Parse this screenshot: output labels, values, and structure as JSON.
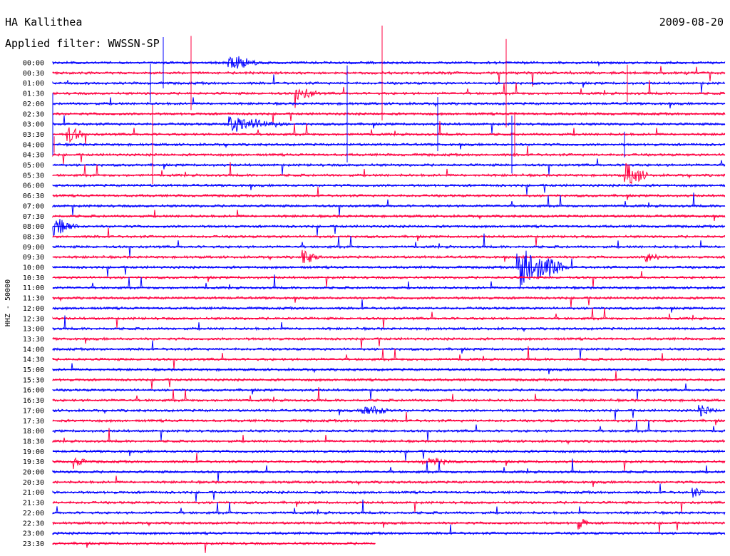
{
  "header": {
    "station": "HA Kallithea",
    "filter": "Applied filter: WWSSN-SP",
    "date": "2009-08-20"
  },
  "chart_data": {
    "type": "line",
    "title": "HA Kallithea",
    "subtitle": "Applied filter: WWSSN-SP",
    "date": "2009-08-20",
    "ylabel": "HHZ - 50000",
    "xlabel": "",
    "rows": [
      "00:00",
      "00:30",
      "01:00",
      "01:30",
      "02:00",
      "02:30",
      "03:00",
      "03:30",
      "04:00",
      "04:30",
      "05:00",
      "05:30",
      "06:00",
      "06:30",
      "07:00",
      "07:30",
      "08:00",
      "08:30",
      "09:00",
      "09:30",
      "10:00",
      "10:30",
      "11:00",
      "11:30",
      "12:00",
      "12:30",
      "13:00",
      "13:30",
      "14:00",
      "14:30",
      "15:00",
      "15:30",
      "16:00",
      "16:30",
      "17:00",
      "17:30",
      "18:00",
      "18:30",
      "19:00",
      "19:30",
      "20:00",
      "20:30",
      "21:00",
      "21:30",
      "22:00",
      "22:30",
      "23:00",
      "23:30"
    ],
    "row_minutes": 30,
    "trace_colors": [
      "#0000ff",
      "#ff0040"
    ],
    "last_row_end_fraction": 0.48,
    "events": [
      {
        "row": 0,
        "pos": 0.26,
        "amp": 1.0,
        "dur": 0.05
      },
      {
        "row": 3,
        "pos": 0.36,
        "amp": 0.8,
        "dur": 0.04
      },
      {
        "row": 6,
        "pos": 0.26,
        "amp": 0.9,
        "dur": 0.09
      },
      {
        "row": 7,
        "pos": 0.02,
        "amp": 1.0,
        "dur": 0.03
      },
      {
        "row": 11,
        "pos": 0.85,
        "amp": 1.4,
        "dur": 0.04
      },
      {
        "row": 16,
        "pos": 0.0,
        "amp": 1.0,
        "dur": 0.04
      },
      {
        "row": 19,
        "pos": 0.37,
        "amp": 0.8,
        "dur": 0.03
      },
      {
        "row": 19,
        "pos": 0.88,
        "amp": 0.6,
        "dur": 0.03
      },
      {
        "row": 20,
        "pos": 0.69,
        "amp": 2.5,
        "dur": 0.08
      },
      {
        "row": 34,
        "pos": 0.46,
        "amp": 0.6,
        "dur": 0.05
      },
      {
        "row": 34,
        "pos": 0.96,
        "amp": 0.6,
        "dur": 0.03
      },
      {
        "row": 39,
        "pos": 0.03,
        "amp": 0.8,
        "dur": 0.02
      },
      {
        "row": 39,
        "pos": 0.55,
        "amp": 0.5,
        "dur": 0.05
      },
      {
        "row": 42,
        "pos": 0.95,
        "amp": 0.6,
        "dur": 0.02
      },
      {
        "row": 45,
        "pos": 0.78,
        "amp": 0.7,
        "dur": 0.02
      }
    ]
  }
}
